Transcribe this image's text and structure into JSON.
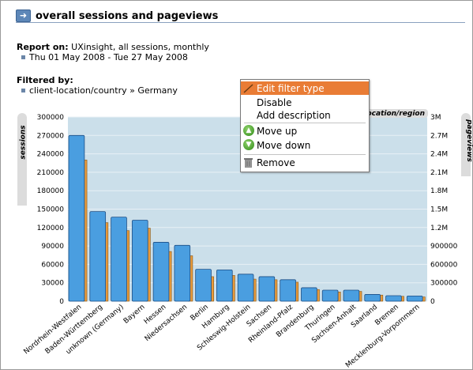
{
  "header": {
    "title": "overall sessions and pageviews"
  },
  "report": {
    "label": "Report on:",
    "value": "UXinsight, all sessions, monthly",
    "date_range": "Thu 01 May 2008 - Tue 27 May 2008"
  },
  "filter": {
    "label": "Filtered by:",
    "value": "client-location/country » Germany"
  },
  "context_menu": {
    "items": [
      {
        "label": "Edit filter type",
        "icon": "pencil-icon",
        "active": true
      },
      {
        "label": "Disable"
      },
      {
        "label": "Add description"
      },
      {
        "label": "Move up",
        "icon": "arrow-up-icon"
      },
      {
        "label": "Move down",
        "icon": "arrow-down-icon"
      },
      {
        "label": "Remove",
        "icon": "trash-icon"
      }
    ]
  },
  "chart_data": {
    "type": "bar",
    "xlabel": "location/region",
    "ylabel_left": "sessions",
    "ylabel_right": "pageviews",
    "ylim_left": [
      0,
      300000
    ],
    "ylim_right": [
      0,
      3000000
    ],
    "yticks_left": [
      "0",
      "30000",
      "60000",
      "90000",
      "120000",
      "150000",
      "180000",
      "210000",
      "240000",
      "270000",
      "300000"
    ],
    "yticks_right": [
      "0",
      "300000",
      "600000",
      "900000",
      "1.2M",
      "1.5M",
      "1.8M",
      "2.1M",
      "2.4M",
      "2.7M",
      "3M"
    ],
    "categories": [
      "Nordrhein-Westfalen",
      "Baden-Württemberg",
      "unknown (Germany)",
      "Bayern",
      "Hessen",
      "Niedersachsen",
      "Berlin",
      "Hamburg",
      "Schleswig-Holstein",
      "Sachsen",
      "Rheinland-Pfalz",
      "Brandenburg",
      "Thuringen",
      "Sachsen-Anhalt",
      "Saarland",
      "Bremen",
      "Mecklenburg-Vorpommern"
    ],
    "series": [
      {
        "name": "sessions",
        "axis": "left",
        "color": "#4a9ee0",
        "values": [
          270000,
          146000,
          137000,
          132000,
          96000,
          91000,
          52000,
          51000,
          44000,
          40000,
          35000,
          22000,
          18000,
          18000,
          11000,
          9000,
          8500
        ]
      },
      {
        "name": "pageviews",
        "axis": "right",
        "color": "#e89a3a",
        "values": [
          2300000,
          1280000,
          1150000,
          1190000,
          810000,
          740000,
          400000,
          420000,
          360000,
          350000,
          310000,
          190000,
          150000,
          160000,
          100000,
          80000,
          70000
        ]
      }
    ],
    "grid": true,
    "legend": "none"
  }
}
